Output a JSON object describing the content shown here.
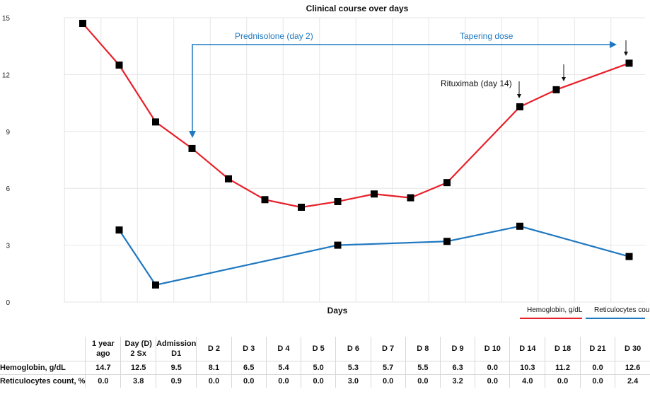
{
  "chart_data": {
    "type": "line",
    "title": "Clinical course over days",
    "xlabel": "Days",
    "ylabel": "",
    "ylim": [
      0,
      15
    ],
    "yticks": [
      0,
      3,
      6,
      9,
      12,
      15
    ],
    "grid": true,
    "legend_position": "bottom-right",
    "categories": [
      "1 year ago",
      "Day (D) 2 Sx",
      "Admission D1",
      "D 2",
      "D 3",
      "D 4",
      "D 5",
      "D 6",
      "D 7",
      "D 8",
      "D 9",
      "D 10",
      "D 14",
      "D 18",
      "D 21",
      "D 30"
    ],
    "series": [
      {
        "name": "Hemoglobin, g/dL",
        "color": "#e8202a",
        "values": [
          14.7,
          12.5,
          9.5,
          8.1,
          6.5,
          5.4,
          5.0,
          5.3,
          5.7,
          5.5,
          6.3,
          null,
          10.3,
          11.2,
          null,
          12.6
        ]
      },
      {
        "name": "Reticulocytes count, %",
        "color": "#1f78c1",
        "values": [
          null,
          3.8,
          0.9,
          null,
          null,
          null,
          null,
          3.0,
          null,
          null,
          3.2,
          null,
          4.0,
          null,
          null,
          2.4
        ]
      }
    ],
    "annotations": [
      {
        "text": "Prednisolone (day 2)",
        "color": "#1f78c1"
      },
      {
        "text": "Tapering dose",
        "color": "#1f78c1"
      },
      {
        "text": "Rituximab (day 14)",
        "color": "#111111"
      }
    ]
  },
  "table": {
    "headers": [
      [
        "1 year",
        "ago"
      ],
      [
        "Day (D)",
        "2 Sx"
      ],
      [
        "Admission",
        "D1"
      ],
      [
        "D 2"
      ],
      [
        "D 3"
      ],
      [
        "D 4"
      ],
      [
        "D 5"
      ],
      [
        "D 6"
      ],
      [
        "D 7"
      ],
      [
        "D 8"
      ],
      [
        "D 9"
      ],
      [
        "D 10"
      ],
      [
        "D 14"
      ],
      [
        "D 18"
      ],
      [
        "D 21"
      ],
      [
        "D 30"
      ]
    ],
    "rows": [
      {
        "label": "Hemoglobin, g/dL",
        "cells": [
          "14.7",
          "12.5",
          "9.5",
          "8.1",
          "6.5",
          "5.4",
          "5.0",
          "5.3",
          "5.7",
          "5.5",
          "6.3",
          "0.0",
          "10.3",
          "11.2",
          "0.0",
          "12.6"
        ]
      },
      {
        "label": "Reticulocytes count, %",
        "cells": [
          "0.0",
          "3.8",
          "0.9",
          "0.0",
          "0.0",
          "0.0",
          "0.0",
          "3.0",
          "0.0",
          "0.0",
          "3.2",
          "0.0",
          "4.0",
          "0.0",
          "0.0",
          "2.4"
        ]
      }
    ]
  }
}
